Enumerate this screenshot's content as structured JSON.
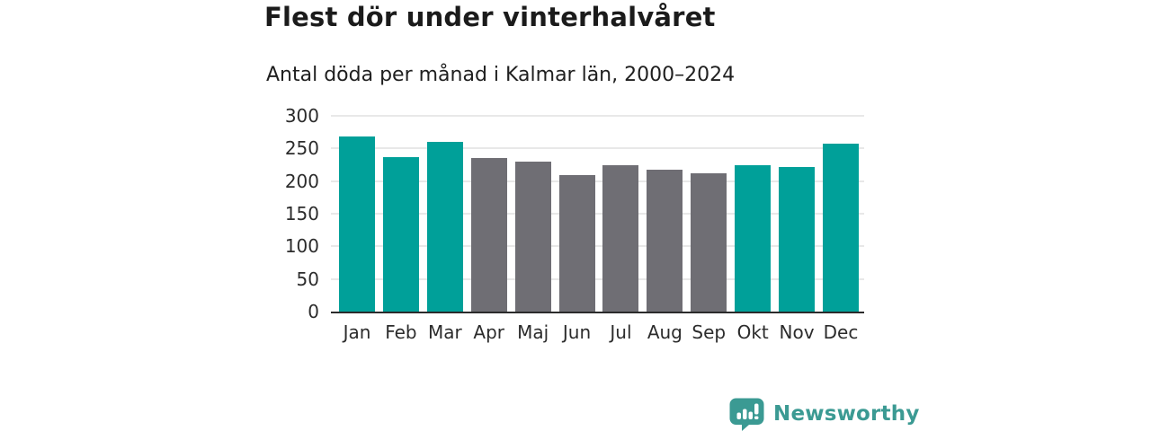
{
  "chart_data": {
    "type": "bar",
    "title": "Flest dör under vinterhalvåret",
    "subtitle": "Antal döda per månad i Kalmar län, 2000–2024",
    "categories": [
      "Jan",
      "Feb",
      "Mar",
      "Apr",
      "Maj",
      "Jun",
      "Jul",
      "Aug",
      "Sep",
      "Okt",
      "Nov",
      "Dec"
    ],
    "values": [
      268,
      237,
      260,
      235,
      230,
      209,
      225,
      217,
      212,
      225,
      222,
      257
    ],
    "bar_colors": [
      "#00a099",
      "#00a099",
      "#00a099",
      "#6f6e74",
      "#6f6e74",
      "#6f6e74",
      "#6f6e74",
      "#6f6e74",
      "#6f6e74",
      "#00a099",
      "#00a099",
      "#00a099"
    ],
    "xlabel": "",
    "ylabel": "",
    "ylim": [
      0,
      300
    ],
    "yticks": [
      0,
      50,
      100,
      150,
      200,
      250,
      300
    ],
    "grid": true,
    "legend": false
  },
  "branding": {
    "logo_text": "Newsworthy",
    "logo_color": "#3b9a93"
  }
}
